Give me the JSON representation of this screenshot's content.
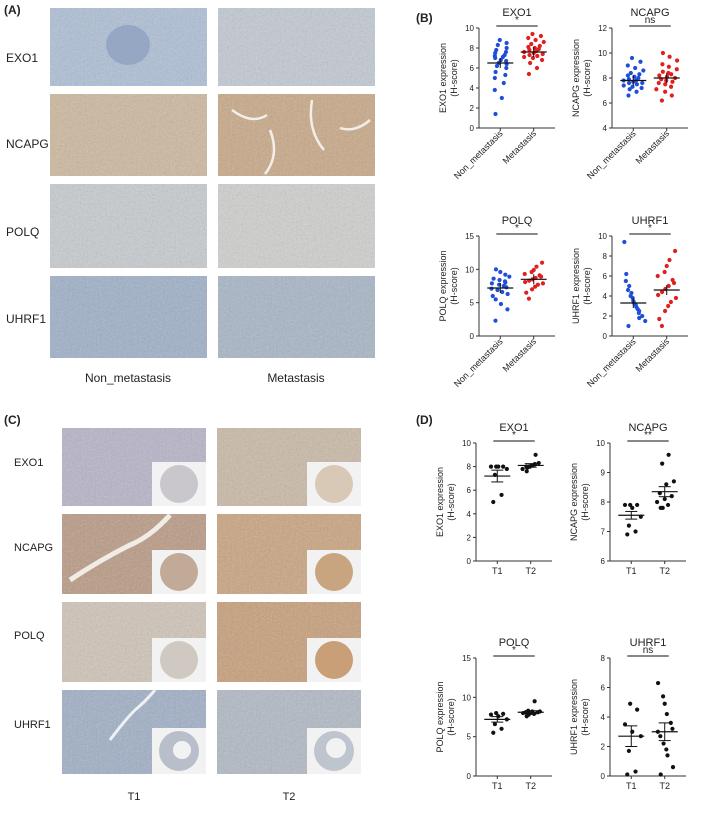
{
  "colors": {
    "nonmeta": "#1f4fd8",
    "meta": "#e02020",
    "tma_point": "#111111"
  },
  "panels": {
    "A": "(A)",
    "B": "(B)",
    "C": "(C)",
    "D": "(D)"
  },
  "panel_a": {
    "rows": [
      "EXO1",
      "NCAPG",
      "POLQ",
      "UHRF1"
    ],
    "cols": [
      "Non_metastasis",
      "Metastasis"
    ]
  },
  "panel_c": {
    "rows": [
      "EXO1",
      "NCAPG",
      "POLQ",
      "UHRF1"
    ],
    "cols": [
      "T1",
      "T2"
    ]
  },
  "chart_data": [
    {
      "id": "B-EXO1",
      "type": "scatter",
      "title": "EXO1",
      "ylabel": "EXO1 expression",
      "ylabel2": "(H-score)",
      "categories": [
        "Non_metastasis",
        "Metastasis"
      ],
      "ylim": [
        0,
        10
      ],
      "yticks": [
        "0",
        "2",
        "4",
        "6",
        "8",
        "10"
      ],
      "sig": "*",
      "series": [
        {
          "values": [
            1.4,
            3.0,
            3.8,
            4.5,
            5.0,
            5.3,
            5.6,
            6.0,
            6.2,
            6.4,
            6.5,
            6.7,
            6.8,
            7.0,
            7.1,
            7.2,
            7.3,
            7.5,
            7.6,
            7.8,
            8.0,
            8.3,
            8.5,
            8.8
          ],
          "mean": 6.5
        },
        {
          "values": [
            5.4,
            6.0,
            6.5,
            6.8,
            7.0,
            7.1,
            7.2,
            7.3,
            7.4,
            7.5,
            7.6,
            7.7,
            7.8,
            7.9,
            8.0,
            8.1,
            8.2,
            8.4,
            8.6,
            8.8,
            9.0,
            9.2,
            9.4
          ],
          "mean": 7.6
        }
      ]
    },
    {
      "id": "B-NCAPG",
      "type": "scatter",
      "title": "NCAPG",
      "ylabel": "NCAPG expression",
      "ylabel2": "(H-score)",
      "categories": [
        "Non_metastasis",
        "Metastasis"
      ],
      "ylim": [
        4,
        12
      ],
      "yticks": [
        "4",
        "6",
        "8",
        "10",
        "12"
      ],
      "sig": "ns",
      "series": [
        {
          "values": [
            6.6,
            6.9,
            7.1,
            7.2,
            7.3,
            7.4,
            7.5,
            7.6,
            7.6,
            7.7,
            7.8,
            7.8,
            7.9,
            8.0,
            8.1,
            8.2,
            8.3,
            8.4,
            8.6,
            8.8,
            9.0,
            9.3,
            9.6
          ],
          "mean": 7.8
        },
        {
          "values": [
            6.2,
            6.6,
            6.9,
            7.1,
            7.3,
            7.5,
            7.6,
            7.7,
            7.8,
            7.9,
            8.0,
            8.1,
            8.2,
            8.3,
            8.4,
            8.5,
            8.7,
            8.9,
            9.1,
            9.4,
            9.7,
            10.0
          ],
          "mean": 8.0
        }
      ]
    },
    {
      "id": "B-POLQ",
      "type": "scatter",
      "title": "POLQ",
      "ylabel": "POLQ expression",
      "ylabel2": "(H-score)",
      "categories": [
        "Non_metastasis",
        "Metastasis"
      ],
      "ylim": [
        0,
        15
      ],
      "yticks": [
        "0",
        "5",
        "10",
        "15"
      ],
      "sig": "*",
      "series": [
        {
          "values": [
            2.3,
            4.0,
            4.8,
            5.5,
            6.0,
            6.3,
            6.6,
            6.9,
            7.1,
            7.3,
            7.5,
            7.7,
            7.9,
            8.0,
            8.2,
            8.4,
            8.6,
            8.9,
            9.2,
            9.6,
            10.0
          ],
          "mean": 7.2
        },
        {
          "values": [
            5.6,
            6.5,
            7.0,
            7.4,
            7.7,
            7.9,
            8.1,
            8.3,
            8.5,
            8.7,
            8.9,
            9.1,
            9.3,
            9.6,
            9.9,
            10.4,
            11.0
          ],
          "mean": 8.5
        }
      ]
    },
    {
      "id": "B-UHRF1",
      "type": "scatter",
      "title": "UHRF1",
      "ylabel": "UHRF1 expression",
      "ylabel2": "(H-score)",
      "categories": [
        "Non_metastasis",
        "Metastasis"
      ],
      "ylim": [
        0,
        10
      ],
      "yticks": [
        "0",
        "2",
        "4",
        "6",
        "8",
        "10"
      ],
      "sig": "*",
      "series": [
        {
          "values": [
            1.0,
            1.5,
            1.8,
            2.0,
            2.3,
            2.5,
            2.7,
            2.9,
            3.1,
            3.3,
            3.5,
            3.8,
            4.0,
            4.3,
            4.6,
            5.0,
            5.5,
            6.2,
            9.4
          ],
          "mean": 3.3
        },
        {
          "values": [
            1.0,
            1.7,
            2.5,
            3.0,
            3.4,
            3.8,
            4.1,
            4.4,
            4.7,
            5.0,
            5.3,
            5.6,
            6.0,
            6.4,
            7.0,
            7.6,
            8.5
          ],
          "mean": 4.6
        }
      ]
    },
    {
      "id": "D-EXO1",
      "type": "scatter",
      "title": "EXO1",
      "ylabel": "EXO1 expression",
      "ylabel2": "(H-score)",
      "categories": [
        "T1",
        "T2"
      ],
      "ylim": [
        0,
        10
      ],
      "yticks": [
        "0",
        "2",
        "4",
        "6",
        "8",
        "10"
      ],
      "sig": "*",
      "series": [
        {
          "values": [
            5.0,
            5.6,
            7.3,
            7.8,
            8.0,
            8.0,
            8.0,
            8.0
          ],
          "mean": 7.2,
          "sem": 0.5
        },
        {
          "values": [
            7.6,
            7.8,
            7.9,
            8.0,
            8.0,
            8.0,
            8.1,
            8.1,
            8.2,
            8.2,
            8.3,
            9.0
          ],
          "mean": 8.1,
          "sem": 0.15
        }
      ]
    },
    {
      "id": "D-NCAPG",
      "type": "scatter",
      "title": "NCAPG",
      "ylabel": "NCAPG expression",
      "ylabel2": "(H-score)",
      "categories": [
        "T1",
        "T2"
      ],
      "ylim": [
        6,
        10
      ],
      "yticks": [
        "6",
        "7",
        "8",
        "9",
        "10"
      ],
      "sig": "**",
      "series": [
        {
          "values": [
            6.9,
            7.0,
            7.2,
            7.5,
            7.8,
            7.9,
            7.9,
            7.9
          ],
          "mean": 7.55,
          "sem": 0.13
        },
        {
          "values": [
            7.8,
            7.8,
            7.9,
            8.0,
            8.1,
            8.2,
            8.3,
            8.6,
            8.7,
            9.3,
            9.6
          ],
          "mean": 8.35,
          "sem": 0.17
        }
      ]
    },
    {
      "id": "D-POLQ",
      "type": "scatter",
      "title": "POLQ",
      "ylabel": "POLQ expression",
      "ylabel2": "(H-score)",
      "categories": [
        "T1",
        "T2"
      ],
      "ylim": [
        0,
        15
      ],
      "yticks": [
        "0",
        "5",
        "10",
        "15"
      ],
      "sig": "*",
      "series": [
        {
          "values": [
            5.5,
            6.0,
            6.6,
            7.2,
            7.6,
            7.8,
            7.9,
            8.0
          ],
          "mean": 7.2,
          "sem": 0.35
        },
        {
          "values": [
            7.6,
            7.8,
            7.9,
            8.0,
            8.0,
            8.1,
            8.1,
            8.2,
            8.2,
            8.3,
            9.5
          ],
          "mean": 8.1,
          "sem": 0.2
        }
      ]
    },
    {
      "id": "D-UHRF1",
      "type": "scatter",
      "title": "UHRF1",
      "ylabel": "UHRF1 expression",
      "ylabel2": "(H-score)",
      "categories": [
        "T1",
        "T2"
      ],
      "ylim": [
        0,
        8
      ],
      "yticks": [
        "0",
        "2",
        "4",
        "6",
        "8"
      ],
      "sig": "ns",
      "series": [
        {
          "values": [
            0.1,
            0.3,
            1.7,
            2.7,
            3.0,
            3.5,
            4.5,
            4.9
          ],
          "mean": 2.7,
          "sem": 0.7
        },
        {
          "values": [
            0.1,
            0.6,
            1.4,
            1.8,
            2.2,
            2.7,
            3.0,
            3.2,
            3.6,
            4.2,
            4.9,
            5.4,
            6.3
          ],
          "mean": 3.0,
          "sem": 0.6
        }
      ]
    }
  ]
}
